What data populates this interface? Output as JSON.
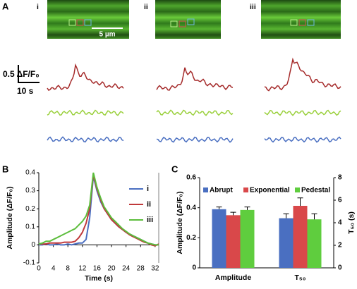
{
  "panels": [
    "A",
    "B",
    "C"
  ],
  "panel_a": {
    "labels": [
      "i",
      "ii",
      "iii"
    ],
    "image_scale": "5 µm",
    "trace_scale_y": "0.5 ΔF/F₀",
    "trace_scale_x": "10 s"
  },
  "chart_data": [
    {
      "type": "line",
      "ylabel": "Amplitude (ΔF/F₀)",
      "xlabel": "Time (s)",
      "x": [
        0,
        1,
        2,
        3,
        4,
        5,
        6,
        7,
        8,
        9,
        10,
        11,
        12,
        13,
        14,
        15,
        16,
        17,
        18,
        19,
        20,
        21,
        22,
        23,
        24,
        25,
        26,
        27,
        28,
        29,
        30,
        31,
        32,
        33
      ],
      "series": [
        {
          "name": "i",
          "color": "#4a6fc1",
          "values": [
            0,
            0,
            0.005,
            0,
            0,
            0.005,
            0,
            0,
            0.005,
            0,
            0.005,
            0.01,
            0.01,
            0.03,
            0.15,
            0.38,
            0.3,
            0.24,
            0.2,
            0.17,
            0.14,
            0.12,
            0.1,
            0.085,
            0.07,
            0.06,
            0.05,
            0.04,
            0.03,
            0.02,
            0.01,
            0.005,
            0,
            0
          ]
        },
        {
          "name": "ii",
          "color": "#c0393b",
          "values": [
            0.005,
            0.005,
            0.005,
            0.01,
            0.01,
            0.01,
            0.01,
            0.015,
            0.015,
            0.015,
            0.02,
            0.04,
            0.07,
            0.12,
            0.2,
            0.39,
            0.31,
            0.25,
            0.2,
            0.17,
            0.14,
            0.12,
            0.1,
            0.085,
            0.07,
            0.055,
            0.045,
            0.035,
            0.025,
            0.015,
            0.01,
            0,
            -0.005,
            0.005
          ]
        },
        {
          "name": "iii",
          "color": "#5cbd3c",
          "values": [
            0.005,
            0.01,
            0.02,
            0.02,
            0.03,
            0.04,
            0.05,
            0.06,
            0.07,
            0.08,
            0.09,
            0.11,
            0.13,
            0.16,
            0.22,
            0.4,
            0.32,
            0.26,
            0.21,
            0.18,
            0.15,
            0.13,
            0.11,
            0.09,
            0.075,
            0.06,
            0.05,
            0.04,
            0.03,
            0.02,
            0.01,
            0.005,
            0,
            0
          ]
        }
      ],
      "xlim": [
        0,
        33
      ],
      "xticks": [
        0,
        4,
        8,
        12,
        16,
        20,
        24,
        28,
        32
      ],
      "ylim": [
        -0.1,
        0.4
      ],
      "yticks": [
        -0.1,
        0,
        0.1,
        0.2,
        0.3,
        0.4
      ],
      "legend": "upper right"
    },
    {
      "type": "bar",
      "ylabel": "Amplitude (ΔF/F₀)",
      "y2label": "T₅₀ (s)",
      "categories": [
        "Amplitude",
        "T₅₀"
      ],
      "category_axes": [
        "y",
        "y2"
      ],
      "series": [
        {
          "name": "Abrupt",
          "color": "#4a6fc1",
          "values": [
            0.39,
            4.4
          ],
          "errors": [
            0.015,
            0.4
          ]
        },
        {
          "name": "Exponential",
          "color": "#d9484a",
          "values": [
            0.35,
            5.5
          ],
          "errors": [
            0.02,
            0.7
          ]
        },
        {
          "name": "Pedestal",
          "color": "#5fcd3e",
          "values": [
            0.385,
            4.3
          ],
          "errors": [
            0.02,
            0.5
          ]
        }
      ],
      "ylim": [
        0,
        0.6
      ],
      "yticks": [
        0,
        0.2,
        0.4,
        0.6
      ],
      "y2lim": [
        0,
        8
      ],
      "y2ticks": [
        0,
        2,
        4,
        6,
        8
      ],
      "legend": "top"
    }
  ]
}
